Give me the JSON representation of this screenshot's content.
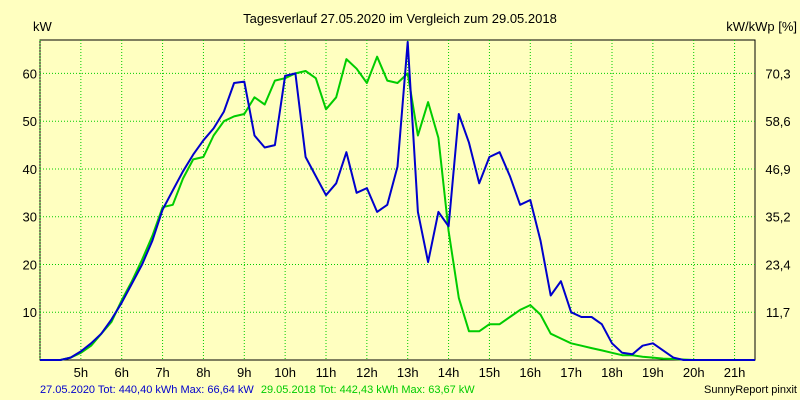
{
  "chart_data": {
    "type": "line",
    "title": "Tagesverlauf 27.05.2020 im Vergleich zum 29.05.2018",
    "y_left_label": "kW",
    "y_right_label": "kW/kWp [%]",
    "x_ticks": [
      "5h",
      "6h",
      "7h",
      "8h",
      "9h",
      "10h",
      "11h",
      "12h",
      "13h",
      "14h",
      "15h",
      "16h",
      "17h",
      "18h",
      "19h",
      "20h",
      "21h"
    ],
    "y_left_ticks": [
      "10",
      "20",
      "30",
      "40",
      "50",
      "60"
    ],
    "y_right_ticks": [
      "11,7",
      "23,4",
      "35,2",
      "46,9",
      "58,6",
      "70,3"
    ],
    "xlim": [
      4.0,
      21.5
    ],
    "ylim": [
      0,
      67
    ],
    "grid": true,
    "series": [
      {
        "name": "27.05.2020",
        "color": "#0000cc",
        "x": [
          4.0,
          4.5,
          4.75,
          5.0,
          5.25,
          5.5,
          5.75,
          6.0,
          6.25,
          6.5,
          6.75,
          7.0,
          7.25,
          7.5,
          7.75,
          8.0,
          8.25,
          8.5,
          8.75,
          9.0,
          9.25,
          9.5,
          9.75,
          10.0,
          10.25,
          10.5,
          10.75,
          11.0,
          11.25,
          11.5,
          11.75,
          12.0,
          12.25,
          12.5,
          12.75,
          13.0,
          13.25,
          13.5,
          13.75,
          14.0,
          14.25,
          14.5,
          14.75,
          15.0,
          15.25,
          15.5,
          15.75,
          16.0,
          16.25,
          16.5,
          16.75,
          17.0,
          17.25,
          17.5,
          17.75,
          18.0,
          18.25,
          18.5,
          18.75,
          19.0,
          19.25,
          19.5,
          19.75,
          20.0,
          20.25,
          20.5,
          20.75,
          21.0,
          21.25,
          21.5
        ],
        "values": [
          0.0,
          0.0,
          0.5,
          1.8,
          3.5,
          5.5,
          8.5,
          12.0,
          16.0,
          20.0,
          25.0,
          31.5,
          35.5,
          39.5,
          43.0,
          46.0,
          48.5,
          52.0,
          58.0,
          58.3,
          47.0,
          44.5,
          45.0,
          59.5,
          60.0,
          42.5,
          38.5,
          34.5,
          37.0,
          43.5,
          35.0,
          36.0,
          31.0,
          32.5,
          40.5,
          66.6,
          31.0,
          20.5,
          31.0,
          28.0,
          51.5,
          45.5,
          37.0,
          42.5,
          43.5,
          38.5,
          32.5,
          33.5,
          25.0,
          13.5,
          16.5,
          10.0,
          9.0,
          9.0,
          7.5,
          3.5,
          1.5,
          1.2,
          3.0,
          3.5,
          2.0,
          0.5,
          0.0,
          0.0,
          0.0,
          0.0,
          0.0,
          0.0,
          0.0,
          0.0
        ],
        "footer_text": "27.05.2020 Tot: 440,40 kWh Max: 66,64 kW"
      },
      {
        "name": "29.05.2018",
        "color": "#00cc00",
        "x": [
          4.0,
          4.5,
          4.75,
          5.0,
          5.25,
          5.5,
          5.75,
          6.0,
          6.25,
          6.5,
          6.75,
          7.0,
          7.25,
          7.5,
          7.75,
          8.0,
          8.25,
          8.5,
          8.75,
          9.0,
          9.25,
          9.5,
          9.75,
          10.0,
          10.25,
          10.5,
          10.75,
          11.0,
          11.25,
          11.5,
          11.75,
          12.0,
          12.25,
          12.5,
          12.75,
          13.0,
          13.25,
          13.5,
          13.75,
          14.0,
          14.25,
          14.5,
          14.75,
          15.0,
          15.25,
          15.5,
          15.75,
          16.0,
          16.25,
          16.5,
          16.75,
          17.0,
          17.25,
          17.5,
          17.75,
          18.0,
          18.25,
          18.5,
          18.75,
          19.0,
          19.25,
          19.5,
          19.75,
          20.0,
          20.25,
          20.5,
          20.75,
          21.0,
          21.25,
          21.5
        ],
        "values": [
          0.0,
          0.0,
          0.5,
          1.5,
          3.0,
          5.5,
          8.0,
          12.5,
          16.5,
          21.0,
          26.0,
          32.0,
          32.5,
          38.0,
          42.0,
          42.5,
          47.0,
          50.0,
          51.0,
          51.5,
          55.0,
          53.5,
          58.5,
          59.0,
          60.0,
          60.5,
          59.0,
          52.5,
          55.0,
          63.0,
          61.0,
          58.0,
          63.5,
          58.5,
          58.0,
          60.0,
          47.0,
          54.0,
          46.5,
          27.0,
          13.0,
          6.0,
          6.0,
          7.5,
          7.5,
          9.0,
          10.5,
          11.5,
          9.5,
          5.5,
          4.5,
          3.5,
          3.0,
          2.5,
          2.0,
          1.5,
          1.0,
          1.0,
          0.7,
          0.5,
          0.3,
          0.2,
          0.1,
          0.0,
          0.0,
          0.0,
          0.0,
          0.0,
          0.0,
          0.0
        ],
        "footer_text": "29.05.2018 Tot: 442,43 kWh Max: 63,67 kW"
      }
    ],
    "footer_right": "SunnyReport pinxit"
  },
  "colors": {
    "background": "#ffffc0",
    "grid": "#00cc00",
    "axis": "#000000"
  }
}
